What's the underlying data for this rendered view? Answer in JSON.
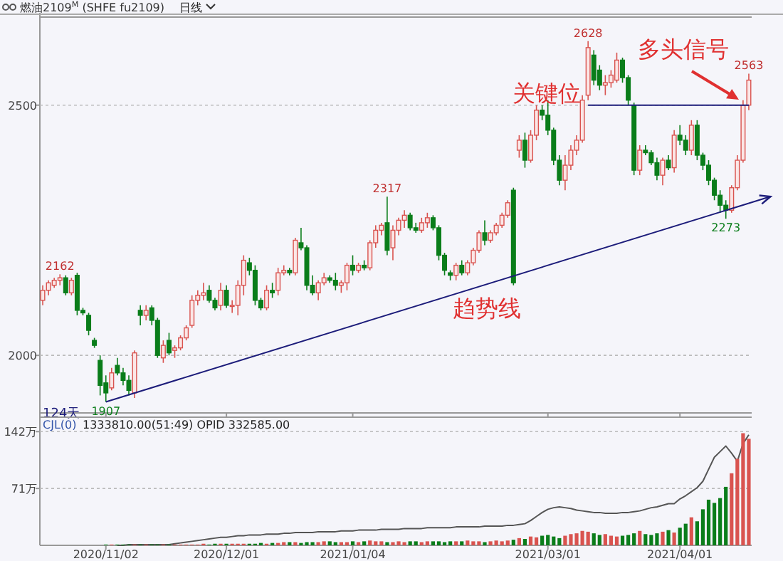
{
  "chart_data": [
    {
      "type": "candlestick",
      "title": "燃油2109$^{M}$ (SHFE fu2109)",
      "subtitle": "日线",
      "tick_labels": "y",
      "grid": "y",
      "ylim": [
        1885,
        2676
      ],
      "yticks": [
        2000,
        2500
      ],
      "categories": [
        null,
        null,
        null,
        null,
        null,
        null,
        null,
        null,
        null,
        null,
        null,
        "2020/11/02",
        null,
        null,
        null,
        null,
        null,
        null,
        null,
        null,
        null,
        null,
        null,
        null,
        null,
        null,
        null,
        null,
        null,
        null,
        null,
        null,
        "2020/12/01",
        null,
        null,
        null,
        null,
        null,
        null,
        null,
        null,
        null,
        null,
        null,
        null,
        null,
        null,
        null,
        null,
        null,
        null,
        null,
        null,
        null,
        "2021/01/04",
        null,
        null,
        null,
        null,
        null,
        null,
        null,
        null,
        null,
        null,
        null,
        null,
        null,
        null,
        null,
        null,
        null,
        null,
        null,
        null,
        null,
        null,
        null,
        null,
        null,
        null,
        null,
        null,
        null,
        null,
        null,
        null,
        null,
        "2021/03/01",
        null,
        null,
        null,
        null,
        null,
        null,
        null,
        null,
        null,
        null,
        null,
        null,
        null,
        null,
        null,
        null,
        null,
        null,
        null,
        null,
        null,
        null,
        "2021/04/01",
        null,
        null,
        null,
        null,
        null,
        null,
        null,
        null,
        null,
        null,
        null,
        null
      ],
      "ohlc": [
        [
          2110,
          2140,
          2100,
          2130
        ],
        [
          2130,
          2150,
          2120,
          2145
        ],
        [
          2140,
          2155,
          2135,
          2150
        ],
        [
          2150,
          2162,
          2140,
          2155
        ],
        [
          2155,
          2160,
          2120,
          2125
        ],
        [
          2125,
          2155,
          2120,
          2150
        ],
        [
          2160,
          2165,
          2080,
          2090
        ],
        [
          2090,
          2095,
          2080,
          2085
        ],
        [
          2080,
          2085,
          2040,
          2050
        ],
        [
          2030,
          2035,
          2015,
          2020
        ],
        [
          1990,
          2000,
          1920,
          1940
        ],
        [
          1945,
          1960,
          1907,
          1925
        ],
        [
          1935,
          1975,
          1930,
          1965
        ],
        [
          1980,
          1995,
          1960,
          1965
        ],
        [
          1965,
          1975,
          1940,
          1950
        ],
        [
          1950,
          1960,
          1920,
          1930
        ],
        [
          1925,
          2010,
          1915,
          2005
        ],
        [
          2090,
          2100,
          2060,
          2080
        ],
        [
          2080,
          2100,
          2070,
          2090
        ],
        [
          2095,
          2100,
          2060,
          2070
        ],
        [
          2070,
          2075,
          1995,
          2000
        ],
        [
          1995,
          2030,
          1985,
          2020
        ],
        [
          2030,
          2045,
          2000,
          2005
        ],
        [
          2010,
          2020,
          1995,
          2015
        ],
        [
          2015,
          2040,
          2010,
          2035
        ],
        [
          2035,
          2060,
          2030,
          2055
        ],
        [
          2060,
          2120,
          2055,
          2110
        ],
        [
          2110,
          2130,
          2100,
          2120
        ],
        [
          2120,
          2145,
          2110,
          2125
        ],
        [
          2130,
          2140,
          2105,
          2110
        ],
        [
          2110,
          2115,
          2090,
          2095
        ],
        [
          2100,
          2145,
          2090,
          2130
        ],
        [
          2130,
          2140,
          2095,
          2100
        ],
        [
          2100,
          2110,
          2085,
          2100
        ],
        [
          2100,
          2150,
          2080,
          2140
        ],
        [
          2140,
          2200,
          2120,
          2190
        ],
        [
          2185,
          2195,
          2160,
          2170
        ],
        [
          2170,
          2180,
          2100,
          2110
        ],
        [
          2110,
          2115,
          2090,
          2095
        ],
        [
          2095,
          2140,
          2090,
          2130
        ],
        [
          2130,
          2145,
          2115,
          2125
        ],
        [
          2130,
          2175,
          2120,
          2165
        ],
        [
          2165,
          2180,
          2160,
          2170
        ],
        [
          2170,
          2175,
          2160,
          2165
        ],
        [
          2165,
          2235,
          2160,
          2230
        ],
        [
          2225,
          2255,
          2210,
          2215
        ],
        [
          2215,
          2220,
          2130,
          2140
        ],
        [
          2140,
          2160,
          2120,
          2125
        ],
        [
          2125,
          2150,
          2110,
          2145
        ],
        [
          2145,
          2165,
          2140,
          2155
        ],
        [
          2155,
          2160,
          2145,
          2150
        ],
        [
          2150,
          2165,
          2130,
          2140
        ],
        [
          2140,
          2150,
          2125,
          2145
        ],
        [
          2145,
          2185,
          2130,
          2180
        ],
        [
          2180,
          2200,
          2160,
          2170
        ],
        [
          2170,
          2185,
          2165,
          2180
        ],
        [
          2180,
          2190,
          2170,
          2175
        ],
        [
          2175,
          2230,
          2170,
          2225
        ],
        [
          2225,
          2260,
          2215,
          2250
        ],
        [
          2250,
          2265,
          2240,
          2260
        ],
        [
          2265,
          2317,
          2200,
          2210
        ],
        [
          2215,
          2260,
          2190,
          2250
        ],
        [
          2250,
          2275,
          2240,
          2270
        ],
        [
          2270,
          2290,
          2255,
          2280
        ],
        [
          2280,
          2285,
          2250,
          2255
        ],
        [
          2255,
          2265,
          2245,
          2250
        ],
        [
          2250,
          2275,
          2245,
          2265
        ],
        [
          2265,
          2285,
          2255,
          2275
        ],
        [
          2275,
          2280,
          2250,
          2255
        ],
        [
          2255,
          2260,
          2190,
          2200
        ],
        [
          2200,
          2205,
          2160,
          2170
        ],
        [
          2165,
          2170,
          2150,
          2160
        ],
        [
          2160,
          2185,
          2150,
          2180
        ],
        [
          2180,
          2190,
          2160,
          2165
        ],
        [
          2165,
          2190,
          2160,
          2185
        ],
        [
          2185,
          2215,
          2180,
          2210
        ],
        [
          2210,
          2250,
          2205,
          2245
        ],
        [
          2245,
          2270,
          2220,
          2230
        ],
        [
          2230,
          2250,
          2225,
          2245
        ],
        [
          2245,
          2265,
          2240,
          2260
        ],
        [
          2260,
          2285,
          2255,
          2280
        ],
        [
          2280,
          2310,
          2275,
          2305
        ],
        [
          2330,
          2335,
          2140,
          2145
        ],
        [
          2410,
          2440,
          2395,
          2430
        ],
        [
          2430,
          2445,
          2375,
          2390
        ],
        [
          2390,
          2450,
          2385,
          2440
        ],
        [
          2440,
          2500,
          2430,
          2490
        ],
        [
          2490,
          2500,
          2470,
          2480
        ],
        [
          2480,
          2510,
          2440,
          2450
        ],
        [
          2450,
          2455,
          2380,
          2390
        ],
        [
          2390,
          2400,
          2340,
          2350
        ],
        [
          2350,
          2400,
          2330,
          2380
        ],
        [
          2380,
          2420,
          2370,
          2410
        ],
        [
          2410,
          2440,
          2400,
          2430
        ],
        [
          2430,
          2520,
          2425,
          2510
        ],
        [
          2520,
          2628,
          2510,
          2615
        ],
        [
          2600,
          2610,
          2540,
          2550
        ],
        [
          2570,
          2580,
          2530,
          2540
        ],
        [
          2540,
          2560,
          2520,
          2545
        ],
        [
          2545,
          2570,
          2535,
          2560
        ],
        [
          2550,
          2605,
          2545,
          2590
        ],
        [
          2590,
          2595,
          2545,
          2555
        ],
        [
          2555,
          2560,
          2500,
          2510
        ],
        [
          2500,
          2505,
          2360,
          2370
        ],
        [
          2370,
          2420,
          2360,
          2410
        ],
        [
          2410,
          2420,
          2400,
          2405
        ],
        [
          2405,
          2410,
          2380,
          2385
        ],
        [
          2385,
          2395,
          2350,
          2360
        ],
        [
          2360,
          2395,
          2340,
          2390
        ],
        [
          2390,
          2400,
          2370,
          2375
        ],
        [
          2375,
          2450,
          2365,
          2440
        ],
        [
          2440,
          2460,
          2420,
          2430
        ],
        [
          2430,
          2440,
          2400,
          2410
        ],
        [
          2410,
          2470,
          2400,
          2460
        ],
        [
          2460,
          2470,
          2390,
          2400
        ],
        [
          2400,
          2405,
          2370,
          2380
        ],
        [
          2380,
          2390,
          2340,
          2350
        ],
        [
          2350,
          2355,
          2310,
          2320
        ],
        [
          2320,
          2330,
          2285,
          2300
        ],
        [
          2300,
          2310,
          2273,
          2290
        ],
        [
          2290,
          2340,
          2285,
          2335
        ],
        [
          2335,
          2400,
          2330,
          2390
        ],
        [
          2390,
          2510,
          2385,
          2500
        ],
        [
          2500,
          2563,
          2490,
          2550
        ]
      ],
      "series": [
        {
          "type": "line",
          "color": "#1c1c7a",
          "values": [
            null,
            null,
            null,
            null,
            null,
            null,
            null,
            null,
            null,
            null,
            null,
            1907,
            null,
            null,
            null,
            null,
            null,
            null,
            null,
            null,
            null,
            null,
            null,
            null,
            null,
            null,
            null,
            null,
            null,
            null,
            null,
            null,
            null,
            null,
            null,
            null,
            null,
            null,
            null,
            null,
            null,
            null,
            null,
            null,
            null,
            null,
            null,
            null,
            null,
            null,
            null,
            null,
            null,
            null,
            null,
            null,
            null,
            null,
            null,
            null,
            null,
            null,
            null,
            null,
            null,
            null,
            null,
            null,
            null,
            null,
            null,
            null,
            null,
            null,
            null,
            null,
            null,
            null,
            null,
            null,
            null,
            null,
            null,
            null,
            null,
            null,
            null,
            null,
            null,
            null,
            null,
            null,
            null,
            null,
            null,
            null,
            null,
            null,
            null,
            null,
            null,
            null,
            null,
            null,
            null,
            null,
            null,
            null,
            null,
            null,
            null,
            null,
            null,
            null,
            null,
            null,
            null,
            null,
            null,
            null,
            null,
            null,
            null,
            2304
          ]
        },
        {
          "type": "line",
          "color": "#1c1c7a",
          "values": [
            null,
            null,
            null,
            null,
            null,
            null,
            null,
            null,
            null,
            null,
            null,
            null,
            null,
            null,
            null,
            null,
            null,
            null,
            null,
            null,
            null,
            null,
            null,
            null,
            null,
            null,
            null,
            null,
            null,
            null,
            null,
            null,
            null,
            null,
            null,
            null,
            null,
            null,
            null,
            null,
            null,
            null,
            null,
            null,
            null,
            null,
            null,
            null,
            null,
            null,
            null,
            null,
            null,
            null,
            null,
            null,
            null,
            null,
            null,
            null,
            null,
            null,
            null,
            null,
            null,
            null,
            null,
            null,
            null,
            null,
            null,
            null,
            null,
            null,
            null,
            null,
            null,
            null,
            null,
            null,
            null,
            null,
            null,
            null,
            null,
            null,
            null,
            null,
            null,
            null,
            null,
            null,
            null,
            null,
            null,
            2500,
            2500,
            2500,
            2500,
            2500,
            2500,
            2500,
            2500,
            2500,
            2500,
            2500,
            2500,
            2500,
            2500,
            2500,
            2500,
            2500,
            2500,
            2500,
            2500,
            2500,
            2500,
            2500,
            2500,
            2500,
            2500,
            2500,
            2500,
            2500
          ]
        }
      ],
      "annotations": [
        {
          "text": "2162",
          "y": 2162
        },
        {
          "text": "1907",
          "y": 1907
        },
        {
          "text": "2317",
          "y": 2317
        },
        {
          "text": "2628",
          "y": 2628
        },
        {
          "text": "2273",
          "y": 2273
        },
        {
          "text": "2563",
          "y": 2563
        },
        {
          "text": "关键位",
          "y": 2500
        },
        "趋势线",
        "多头信号",
        "124天"
      ]
    },
    {
      "type": "bar",
      "title": "CJL(0)",
      "subtitle": "1333810.00(51:49)  OPID 332585.00",
      "grid": "y",
      "ylim": [
        0,
        160
      ],
      "yticks": [
        {
          "value": 71,
          "label": "71万"
        },
        {
          "value": 142,
          "label": "142万"
        }
      ],
      "categories": [
        null,
        null,
        null,
        null,
        null,
        null,
        null,
        null,
        null,
        null,
        null,
        "2020/11/02",
        null,
        null,
        null,
        null,
        null,
        null,
        null,
        null,
        null,
        null,
        null,
        null,
        null,
        null,
        null,
        null,
        null,
        null,
        null,
        null,
        "2020/12/01",
        null,
        null,
        null,
        null,
        null,
        null,
        null,
        null,
        null,
        null,
        null,
        null,
        null,
        null,
        null,
        null,
        null,
        null,
        null,
        null,
        null,
        "2021/01/04",
        null,
        null,
        null,
        null,
        null,
        null,
        null,
        null,
        null,
        null,
        null,
        null,
        null,
        null,
        null,
        null,
        null,
        null,
        null,
        null,
        null,
        null,
        null,
        null,
        null,
        null,
        null,
        null,
        null,
        null,
        null,
        null,
        null,
        "2021/03/01",
        null,
        null,
        null,
        null,
        null,
        null,
        null,
        null,
        null,
        null,
        null,
        null,
        null,
        null,
        null,
        null,
        null,
        null,
        null,
        null,
        null,
        null,
        "2021/04/01",
        null,
        null,
        null,
        null,
        null,
        null,
        null,
        null,
        null,
        null,
        null,
        null
      ],
      "series": [
        {
          "type": "bar",
          "colors": [
            "#d9534f",
            "#d9534f",
            "#d9534f",
            "#d9534f",
            "#0a7d1a",
            "#d9534f",
            "#0a7d1a",
            "#0a7d1a",
            "#0a7d1a",
            "#0a7d1a",
            "#0a7d1a",
            "#0a7d1a",
            "#d9534f",
            "#0a7d1a",
            "#0a7d1a",
            "#0a7d1a",
            "#d9534f",
            "#0a7d1a",
            "#d9534f",
            "#0a7d1a",
            "#0a7d1a",
            "#d9534f",
            "#0a7d1a",
            "#d9534f",
            "#d9534f",
            "#d9534f",
            "#d9534f",
            "#d9534f",
            "#d9534f",
            "#0a7d1a",
            "#0a7d1a",
            "#d9534f",
            "#0a7d1a",
            "#d9534f",
            "#d9534f",
            "#d9534f",
            "#0a7d1a",
            "#0a7d1a",
            "#0a7d1a",
            "#d9534f",
            "#0a7d1a",
            "#d9534f",
            "#d9534f",
            "#0a7d1a",
            "#d9534f",
            "#0a7d1a",
            "#0a7d1a",
            "#0a7d1a",
            "#d9534f",
            "#d9534f",
            "#0a7d1a",
            "#0a7d1a",
            "#d9534f",
            "#d9534f",
            "#0a7d1a",
            "#d9534f",
            "#0a7d1a",
            "#d9534f",
            "#d9534f",
            "#d9534f",
            "#0a7d1a",
            "#d9534f",
            "#d9534f",
            "#d9534f",
            "#0a7d1a",
            "#0a7d1a",
            "#d9534f",
            "#d9534f",
            "#0a7d1a",
            "#0a7d1a",
            "#0a7d1a",
            "#0a7d1a",
            "#d9534f",
            "#0a7d1a",
            "#d9534f",
            "#d9534f",
            "#d9534f",
            "#0a7d1a",
            "#d9534f",
            "#d9534f",
            "#d9534f",
            "#d9534f",
            "#0a7d1a",
            "#d9534f",
            "#0a7d1a",
            "#d9534f",
            "#d9534f",
            "#0a7d1a",
            "#0a7d1a",
            "#0a7d1a",
            "#0a7d1a",
            "#d9534f",
            "#d9534f",
            "#d9534f",
            "#d9534f",
            "#d9534f",
            "#0a7d1a",
            "#0a7d1a",
            "#d9534f",
            "#d9534f",
            "#d9534f",
            "#0a7d1a",
            "#0a7d1a",
            "#0a7d1a",
            "#d9534f",
            "#0a7d1a",
            "#0a7d1a",
            "#0a7d1a",
            "#d9534f",
            "#0a7d1a",
            "#d9534f",
            "#0a7d1a",
            "#0a7d1a",
            "#d9534f",
            "#0a7d1a",
            "#0a7d1a",
            "#0a7d1a",
            "#0a7d1a",
            "#0a7d1a",
            "#0a7d1a",
            "#d9534f",
            "#d9534f",
            "#d9534f",
            "#d9534f"
          ],
          "values": [
            0,
            0,
            0,
            0,
            0,
            0,
            0,
            0,
            0,
            0,
            0,
            1,
            1,
            1,
            1,
            1,
            1,
            1,
            1,
            1,
            1,
            1,
            1,
            1,
            1,
            1,
            1,
            1,
            2,
            1,
            2,
            2,
            2,
            2,
            2,
            2,
            2,
            2,
            3,
            2,
            3,
            3,
            4,
            4,
            4,
            3,
            4,
            4,
            4,
            5,
            5,
            4,
            4,
            4,
            5,
            4,
            5,
            6,
            5,
            5,
            4,
            4,
            5,
            4,
            5,
            5,
            4,
            5,
            5,
            5,
            4,
            5,
            5,
            5,
            6,
            5,
            5,
            4,
            5,
            6,
            5,
            6,
            7,
            9,
            8,
            11,
            10,
            12,
            13,
            11,
            9,
            12,
            14,
            15,
            18,
            17,
            15,
            13,
            14,
            12,
            11,
            12,
            13,
            15,
            18,
            14,
            13,
            15,
            17,
            19,
            16,
            22,
            27,
            35,
            30,
            45,
            57,
            53,
            59,
            73,
            90,
            108,
            140,
            133
          ]
        },
        {
          "type": "line",
          "color": "#555555",
          "values": [
            null,
            null,
            null,
            null,
            null,
            null,
            null,
            null,
            null,
            null,
            null,
            null,
            null,
            0,
            0,
            1,
            1,
            1,
            1,
            1,
            1,
            1,
            1,
            2,
            3,
            4,
            5,
            6,
            7,
            8,
            9,
            10,
            10,
            11,
            12,
            12,
            13,
            13,
            13,
            14,
            14,
            14,
            15,
            15,
            16,
            16,
            16,
            16,
            17,
            17,
            17,
            17,
            18,
            18,
            18,
            19,
            19,
            19,
            19,
            20,
            20,
            20,
            20,
            21,
            21,
            21,
            21,
            22,
            22,
            22,
            22,
            22,
            23,
            23,
            23,
            23,
            23,
            24,
            24,
            24,
            24,
            25,
            25,
            26,
            27,
            31,
            36,
            41,
            45,
            47,
            48,
            47,
            46,
            44,
            43,
            42,
            41,
            41,
            40,
            40,
            40,
            41,
            41,
            42,
            43,
            45,
            47,
            48,
            50,
            52,
            52,
            58,
            62,
            67,
            72,
            80,
            95,
            110,
            117,
            124,
            115,
            105,
            127,
            138
          ]
        }
      ]
    }
  ]
}
